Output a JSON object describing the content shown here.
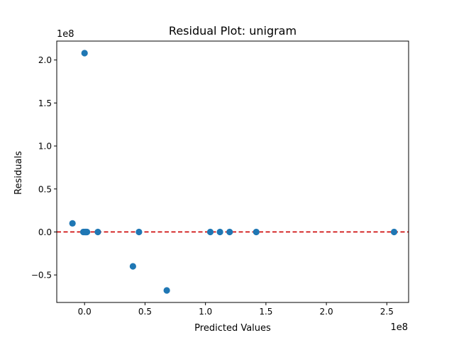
{
  "chart_data": {
    "type": "scatter",
    "title": "Residual Plot: unigram",
    "xlabel": "Predicted Values",
    "ylabel": "Residuals",
    "x_offset_label": "1e8",
    "y_offset_label": "1e8",
    "xlim": [
      -0.23,
      2.68
    ],
    "ylim": [
      -0.82,
      2.22
    ],
    "x_ticks": [
      {
        "value": 0.0,
        "label": "0.0"
      },
      {
        "value": 0.5,
        "label": "0.5"
      },
      {
        "value": 1.0,
        "label": "1.0"
      },
      {
        "value": 1.5,
        "label": "1.5"
      },
      {
        "value": 2.0,
        "label": "2.0"
      },
      {
        "value": 2.5,
        "label": "2.5"
      }
    ],
    "y_ticks": [
      {
        "value": -0.5,
        "label": "−0.5"
      },
      {
        "value": 0.0,
        "label": "0.0"
      },
      {
        "value": 0.5,
        "label": "0.5"
      },
      {
        "value": 1.0,
        "label": "1.0"
      },
      {
        "value": 1.5,
        "label": "1.5"
      },
      {
        "value": 2.0,
        "label": "2.0"
      }
    ],
    "reference_line": {
      "y": 0,
      "color": "#cc0000",
      "style": "dashed"
    },
    "marker_color": "#1f77b4",
    "grid": false,
    "points": [
      {
        "x": 0.0,
        "y": 2.08
      },
      {
        "x": -0.1,
        "y": 0.1
      },
      {
        "x": -0.01,
        "y": 0.0
      },
      {
        "x": 0.0,
        "y": 0.0
      },
      {
        "x": 0.005,
        "y": 0.0
      },
      {
        "x": 0.01,
        "y": 0.0
      },
      {
        "x": 0.015,
        "y": 0.0
      },
      {
        "x": 0.02,
        "y": 0.0
      },
      {
        "x": 0.11,
        "y": 0.0
      },
      {
        "x": 0.4,
        "y": -0.4
      },
      {
        "x": 0.45,
        "y": 0.0
      },
      {
        "x": 0.68,
        "y": -0.68
      },
      {
        "x": 1.04,
        "y": 0.0
      },
      {
        "x": 1.12,
        "y": 0.0
      },
      {
        "x": 1.2,
        "y": 0.0
      },
      {
        "x": 1.42,
        "y": 0.0
      },
      {
        "x": 2.56,
        "y": 0.0
      }
    ]
  }
}
